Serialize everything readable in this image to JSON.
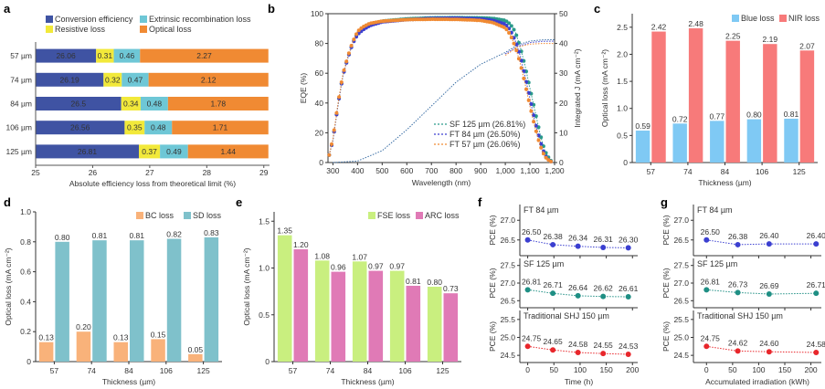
{
  "chart_data": [
    {
      "panel": "a",
      "type": "bar",
      "orientation": "horizontal-stacked",
      "categories": [
        "57 µm",
        "74 µm",
        "84 µm",
        "106 µm",
        "125 µm"
      ],
      "series": [
        {
          "name": "Conversion efficiency",
          "color": "#3f53a3",
          "values": [
            26.06,
            26.19,
            26.5,
            26.56,
            26.81
          ]
        },
        {
          "name": "Resistive loss",
          "color": "#f2e93a",
          "values": [
            0.31,
            0.32,
            0.34,
            0.35,
            0.37
          ]
        },
        {
          "name": "Extrinsic recombination loss",
          "color": "#6ec7d6",
          "values": [
            0.46,
            0.47,
            0.48,
            0.48,
            0.49
          ]
        },
        {
          "name": "Optical loss",
          "color": "#f08a33",
          "values": [
            2.27,
            2.12,
            1.78,
            1.71,
            1.44
          ]
        }
      ],
      "value_labels": [
        [
          "26.06",
          "0.31",
          "0.46",
          "2.27"
        ],
        [
          "26.19",
          "0.32",
          "0.47",
          "2.12"
        ],
        [
          "26.5",
          "0.34",
          "0.48",
          "1.78"
        ],
        [
          "26.56",
          "0.35",
          "0.48",
          "1.71"
        ],
        [
          "26.81",
          "0.37",
          "0.49",
          "1.44"
        ]
      ],
      "xlabel": "Absolute efficiency loss from theoretical limit (%)",
      "xlim": [
        25,
        29.1
      ],
      "xticks": [
        "25",
        "26",
        "27",
        "28",
        "29"
      ],
      "legend": "top"
    },
    {
      "panel": "b",
      "type": "line",
      "xlabel": "Wavelength (nm)",
      "ylabel": "EQE (%)",
      "y2label": "Integrated J (mA cm⁻²)",
      "xlim": [
        280,
        1200
      ],
      "ylim": [
        0,
        100
      ],
      "y2lim": [
        0,
        50
      ],
      "xticks": [
        "300",
        "400",
        "500",
        "600",
        "700",
        "800",
        "900",
        "1,000",
        "1,100",
        "1,200"
      ],
      "yticks": [
        "0",
        "20",
        "40",
        "60",
        "80",
        "100"
      ],
      "y2ticks": [
        "0",
        "10",
        "20",
        "30",
        "40",
        "50"
      ],
      "series": [
        {
          "name": "SF 125 µm (26.81%)",
          "color": "#2a9a8a",
          "eqe_x": [
            285,
            300,
            320,
            340,
            360,
            380,
            400,
            420,
            450,
            500,
            600,
            700,
            800,
            900,
            950,
            1000,
            1020,
            1040,
            1060,
            1080,
            1100,
            1120,
            1140,
            1160,
            1180,
            1190
          ],
          "eqe_y": [
            5,
            15,
            38,
            58,
            70,
            80,
            87,
            90,
            93,
            95,
            96.5,
            97.2,
            97.3,
            97.2,
            96.8,
            95.5,
            93,
            88,
            78,
            65,
            50,
            35,
            20,
            8,
            2,
            0.5
          ],
          "jsc_x": [
            300,
            400,
            500,
            600,
            700,
            800,
            900,
            1000,
            1050,
            1100,
            1150,
            1200
          ],
          "jsc_y": [
            0,
            0.5,
            4,
            11,
            19,
            27,
            33,
            37,
            39.5,
            40.8,
            41.2,
            41.3
          ]
        },
        {
          "name": "FT 84 µm (26.50%)",
          "color": "#3b3fd0",
          "eqe_x": [
            285,
            300,
            320,
            340,
            360,
            380,
            400,
            420,
            450,
            500,
            600,
            700,
            800,
            900,
            950,
            1000,
            1020,
            1040,
            1060,
            1080,
            1100,
            1120,
            1140,
            1160,
            1180,
            1190
          ],
          "eqe_y": [
            5,
            15,
            38,
            58,
            70,
            80,
            86,
            89,
            92,
            94.5,
            96,
            96.8,
            97,
            96.5,
            95.5,
            93,
            89,
            82,
            72,
            58,
            43,
            28,
            15,
            5,
            1,
            0.3
          ],
          "jsc_x": [
            1000,
            1050,
            1100,
            1150,
            1200
          ],
          "jsc_y": [
            36.5,
            39,
            40.3,
            40.7,
            40.8
          ]
        },
        {
          "name": "FT 57 µm (26.06%)",
          "color": "#f08a33",
          "eqe_x": [
            285,
            300,
            320,
            340,
            360,
            380,
            400,
            420,
            450,
            500,
            600,
            700,
            800,
            900,
            950,
            1000,
            1020,
            1040,
            1060,
            1080,
            1100,
            1120,
            1140,
            1160,
            1180,
            1190
          ],
          "eqe_y": [
            5,
            16,
            39,
            59,
            71,
            81,
            88,
            91,
            93.5,
            95,
            96,
            96.3,
            96.2,
            95.5,
            94,
            90.5,
            86,
            78,
            67,
            53,
            38,
            24,
            12,
            4,
            1,
            0.3
          ],
          "jsc_x": [
            1000,
            1050,
            1100,
            1150,
            1200
          ],
          "jsc_y": [
            36,
            38.8,
            39.8,
            40,
            40
          ]
        }
      ],
      "legend": "bottom-right"
    },
    {
      "panel": "c",
      "type": "bar",
      "categories": [
        "57",
        "74",
        "84",
        "106",
        "125"
      ],
      "series": [
        {
          "name": "Blue loss",
          "color": "#7fc9f4",
          "values": [
            0.59,
            0.72,
            0.77,
            0.8,
            0.81
          ],
          "labels": [
            "0.59",
            "0.72",
            "0.77",
            "0.80",
            "0.81"
          ]
        },
        {
          "name": "NIR loss",
          "color": "#f77a7a",
          "values": [
            2.42,
            2.48,
            2.25,
            2.19,
            2.07
          ],
          "labels": [
            "2.42",
            "2.48",
            "2.25",
            "2.19",
            "2.07"
          ]
        }
      ],
      "xlabel": "Thickness (µm)",
      "ylabel": "Optical loss (mA cm⁻²)",
      "ylim": [
        0,
        2.75
      ],
      "yticks": [
        "0",
        "0.5",
        "1.0",
        "1.5",
        "2.0",
        "2.5"
      ],
      "ytick_values": [
        0,
        0.5,
        1.0,
        1.5,
        2.0,
        2.5
      ],
      "legend": "top-right"
    },
    {
      "panel": "d",
      "type": "bar",
      "categories": [
        "57",
        "74",
        "84",
        "106",
        "125"
      ],
      "series": [
        {
          "name": "BC loss",
          "color": "#f9b27a",
          "values": [
            0.13,
            0.2,
            0.13,
            0.15,
            0.05
          ],
          "labels": [
            "0.13",
            "0.20",
            "0.13",
            "0.15",
            "0.05"
          ]
        },
        {
          "name": "SD loss",
          "color": "#7fc1cb",
          "values": [
            0.8,
            0.81,
            0.81,
            0.82,
            0.83
          ],
          "labels": [
            "0.80",
            "0.81",
            "0.81",
            "0.82",
            "0.83"
          ]
        }
      ],
      "xlabel": "Thickness (µm)",
      "ylabel": "Optical loss (mA cm⁻²)",
      "ylim": [
        0,
        1.0
      ],
      "yticks": [
        "0",
        "0.2",
        "0.4",
        "0.6",
        "0.8",
        "1.0"
      ],
      "ytick_values": [
        0,
        0.2,
        0.4,
        0.6,
        0.8,
        1.0
      ],
      "legend": "top-right"
    },
    {
      "panel": "e",
      "type": "bar",
      "categories": [
        "57",
        "74",
        "84",
        "106",
        "125"
      ],
      "series": [
        {
          "name": "FSE loss",
          "color": "#c9ef7f",
          "values": [
            1.35,
            1.08,
            1.07,
            0.97,
            0.8
          ],
          "labels": [
            "1.35",
            "1.08",
            "1.07",
            "0.97",
            "0.80"
          ]
        },
        {
          "name": "ARC loss",
          "color": "#e07ab6",
          "values": [
            1.2,
            0.96,
            0.97,
            0.81,
            0.73
          ],
          "labels": [
            "1.20",
            "0.96",
            "0.97",
            "0.81",
            "0.73"
          ]
        }
      ],
      "xlabel": "Thickness (µm)",
      "ylabel": "Optical loss (mA cm⁻²)",
      "ylim": [
        0,
        1.6
      ],
      "yticks": [
        "0",
        "0.5",
        "1.0",
        "1.5"
      ],
      "ytick_values": [
        0,
        0.5,
        1.0,
        1.5
      ],
      "legend": "top-right"
    },
    {
      "panel": "f",
      "type": "line",
      "xlabel": "Time (h)",
      "ylabel": "PCE (%)",
      "xlim": [
        -15,
        210
      ],
      "xticks": [
        0,
        50,
        100,
        150,
        200
      ],
      "subplots": [
        {
          "title": "FT 84 µm",
          "color": "#3b3fd0",
          "x": [
            0,
            48,
            96,
            144,
            192
          ],
          "y": [
            26.5,
            26.38,
            26.34,
            26.31,
            26.3
          ],
          "labels": [
            "26.50",
            "26.38",
            "26.34",
            "26.31",
            "26.30"
          ],
          "ylim": [
            26.1,
            27.4
          ],
          "yticks": [
            26.5,
            27.0
          ]
        },
        {
          "title": "SF 125 µm",
          "color": "#1f8f84",
          "x": [
            0,
            48,
            96,
            144,
            192
          ],
          "y": [
            26.81,
            26.71,
            26.64,
            26.62,
            26.61
          ],
          "labels": [
            "26.81",
            "26.71",
            "26.64",
            "26.62",
            "26.61"
          ],
          "ylim": [
            26.3,
            27.7
          ],
          "yticks": [
            26.5,
            27.0,
            27.5
          ]
        },
        {
          "title": "Traditional SHJ 150 µm",
          "color": "#e8262b",
          "x": [
            0,
            48,
            96,
            144,
            192
          ],
          "y": [
            24.75,
            24.65,
            24.58,
            24.55,
            24.53
          ],
          "labels": [
            "24.75",
            "24.65",
            "24.58",
            "24.55",
            "24.53"
          ],
          "ylim": [
            24.3,
            25.75
          ],
          "yticks": [
            24.5,
            25.0,
            25.5
          ]
        }
      ]
    },
    {
      "panel": "g",
      "type": "line",
      "xlabel": "Accumulated irradiation (kWh)",
      "ylabel": "PCE (%)",
      "xlim": [
        -25,
        220
      ],
      "xticks": [
        0,
        50,
        100,
        150,
        200
      ],
      "subplots": [
        {
          "title": "FT 84 µm",
          "color": "#3b3fd0",
          "x": [
            0,
            60,
            120,
            210
          ],
          "y": [
            26.5,
            26.38,
            26.4,
            26.4
          ],
          "labels": [
            "26.50",
            "26.38",
            "26.40",
            "26.40"
          ],
          "ylim": [
            26.1,
            27.4
          ],
          "yticks": [
            26.5,
            27.0
          ]
        },
        {
          "title": "SF 125 µm",
          "color": "#1f8f84",
          "x": [
            0,
            60,
            120,
            210
          ],
          "y": [
            26.81,
            26.73,
            26.69,
            26.71
          ],
          "labels": [
            "26.81",
            "26.73",
            "26.69",
            "26.71"
          ],
          "ylim": [
            26.3,
            27.7
          ],
          "yticks": [
            26.5,
            27.0,
            27.5
          ]
        },
        {
          "title": "Traditional SHJ 150 µm",
          "color": "#e8262b",
          "x": [
            0,
            60,
            120,
            210
          ],
          "y": [
            24.75,
            24.62,
            24.6,
            24.58
          ],
          "labels": [
            "24.75",
            "24.62",
            "24.60",
            "24.58"
          ],
          "ylim": [
            24.3,
            25.75
          ],
          "yticks": [
            24.5,
            25.0,
            25.5
          ]
        }
      ]
    }
  ],
  "panel_letters": [
    "a",
    "b",
    "c",
    "d",
    "e",
    "f",
    "g"
  ]
}
